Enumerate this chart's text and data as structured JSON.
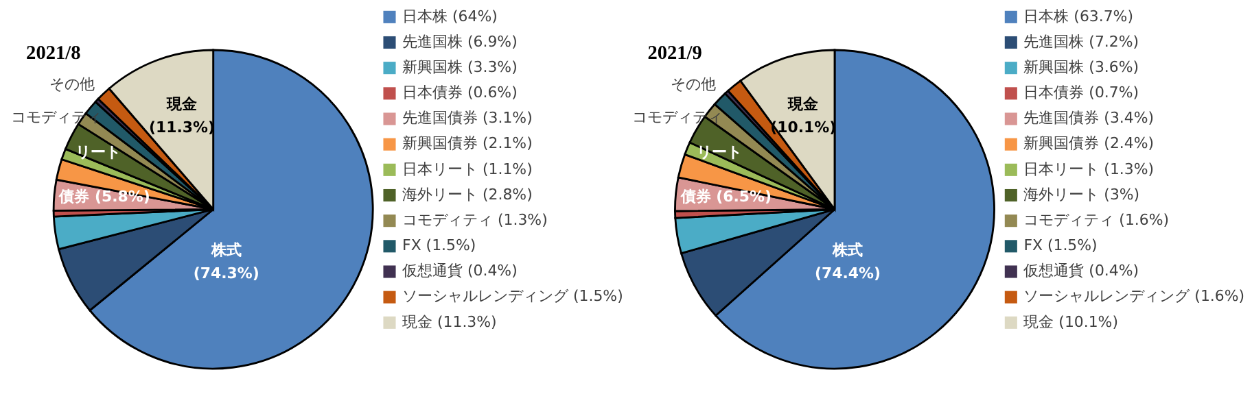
{
  "chart_data": [
    {
      "type": "pie",
      "title": "2021/8",
      "legend": "right",
      "categories": [
        "日本株 (64%)",
        "先進国株 (6.9%)",
        "新興国株 (3.3%)",
        "日本債券 (0.6%)",
        "先進国債券 (3.1%)",
        "新興国債券 (2.1%)",
        "日本リート (1.1%)",
        "海外リート (2.8%)",
        "コモディティ (1.3%)",
        "FX (1.5%)",
        "仮想通貨 (0.4%)",
        "ソーシャルレンディング (1.5%)",
        "現金 (11.3%)"
      ],
      "values": [
        64,
        6.9,
        3.3,
        0.6,
        3.1,
        2.1,
        1.1,
        2.8,
        1.3,
        1.5,
        0.4,
        1.5,
        11.3
      ],
      "colors": [
        "#4f81bd",
        "#2c4d75",
        "#4bacc6",
        "#c0504d",
        "#d99694",
        "#f79646",
        "#9bbb59",
        "#4f6228",
        "#938953",
        "#215968",
        "#403151",
        "#c55a11",
        "#ddd9c3"
      ],
      "annotations": [
        "株式 (74.3%)",
        "債券 (5.8%)",
        "リート",
        "コモディティ",
        "その他",
        "現金 (11.3%)"
      ]
    },
    {
      "type": "pie",
      "title": "2021/9",
      "legend": "right",
      "categories": [
        "日本株 (63.7%)",
        "先進国株 (7.2%)",
        "新興国株 (3.6%)",
        "日本債券 (0.7%)",
        "先進国債券 (3.4%)",
        "新興国債券 (2.4%)",
        "日本リート (1.3%)",
        "海外リート (3%)",
        "コモディティ (1.6%)",
        "FX (1.5%)",
        "仮想通貨 (0.4%)",
        "ソーシャルレンディング (1.6%)",
        "現金 (10.1%)"
      ],
      "values": [
        63.7,
        7.2,
        3.6,
        0.7,
        3.4,
        2.4,
        1.3,
        3,
        1.6,
        1.5,
        0.4,
        1.6,
        10.1
      ],
      "colors": [
        "#4f81bd",
        "#2c4d75",
        "#4bacc6",
        "#c0504d",
        "#d99694",
        "#f79646",
        "#9bbb59",
        "#4f6228",
        "#938953",
        "#215968",
        "#403151",
        "#c55a11",
        "#ddd9c3"
      ],
      "annotations": [
        "株式 (74.4%)",
        "債券 (6.5%)",
        "リート",
        "コモディティ",
        "その他",
        "現金 (10.1%)"
      ]
    }
  ]
}
